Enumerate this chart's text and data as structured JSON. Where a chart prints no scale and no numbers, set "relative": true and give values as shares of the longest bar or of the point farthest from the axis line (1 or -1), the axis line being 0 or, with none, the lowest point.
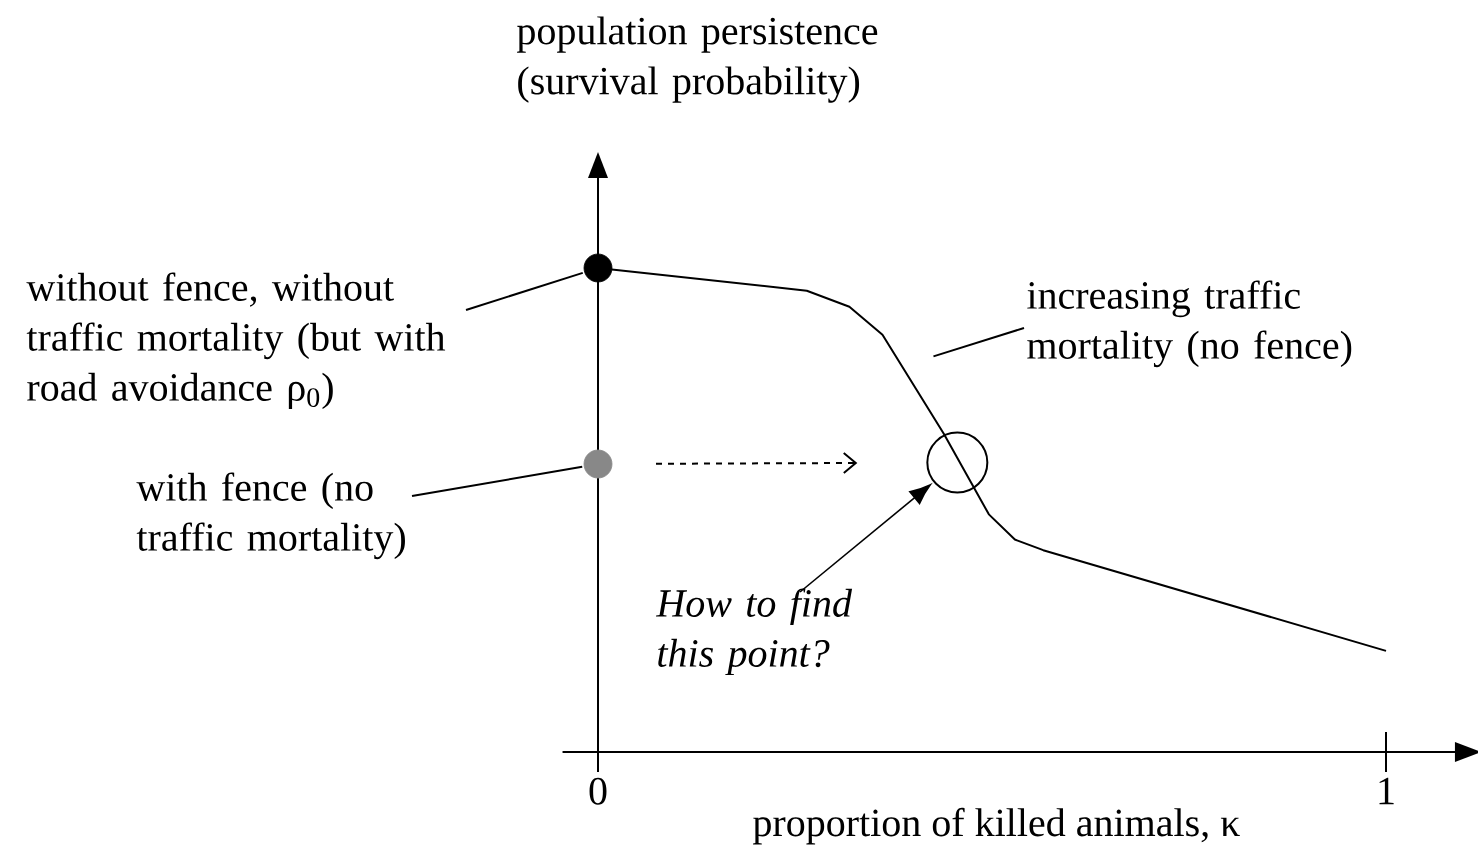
{
  "chart_data": {
    "type": "line",
    "relative": true,
    "ylabel": "population persistence (survival probability)",
    "xlabel": "proportion of  killed animals, κ",
    "xlim": [
      -0.045,
      1.09
    ],
    "xticks": [
      0,
      1
    ],
    "series": [
      {
        "color": "#000000",
        "x": [
          0,
          0.265,
          0.319,
          0.361,
          0.439,
          0.496,
          0.529,
          0.565,
          1.0
        ],
        "values": [
          1,
          0.953,
          0.92,
          0.862,
          0.657,
          0.491,
          0.439,
          0.417,
          0.209
        ]
      },
      {
        "type": "scatter",
        "color": "#000000",
        "x": [
          0
        ],
        "values": [
          1
        ]
      },
      {
        "type": "scatter",
        "color": "#888888",
        "x": [
          0
        ],
        "values": [
          0.595
        ]
      },
      {
        "type": "scatter",
        "color": "#000000",
        "marker": "circle",
        "x": [
          0.456
        ],
        "values": [
          0.598
        ]
      }
    ],
    "annotations": [
      "without fence, without traffic mortality (but with road avoidance ρ$_{0}$)",
      "with fence (no traffic mortality)",
      "increasing traffic mortality (no fence)",
      "How to find this point?"
    ]
  }
}
